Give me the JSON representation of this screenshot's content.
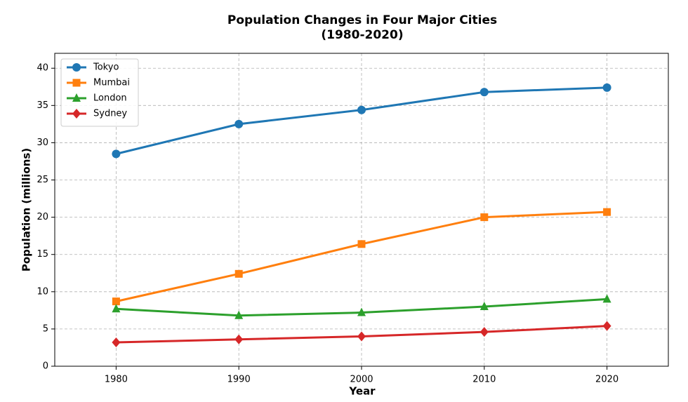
{
  "chart_data": {
    "type": "line",
    "title": "Population Changes in Four Major Cities",
    "subtitle": "(1980-2020)",
    "x_label": "Year",
    "y_label": "Population (millions)",
    "x": [
      1980,
      1990,
      2000,
      2010,
      2020
    ],
    "series": [
      {
        "name": "Tokyo",
        "color": "#1f77b4",
        "marker": "circle",
        "values": [
          28.5,
          32.5,
          34.4,
          36.8,
          37.4
        ]
      },
      {
        "name": "Mumbai",
        "color": "#ff7f0e",
        "marker": "square",
        "values": [
          8.7,
          12.4,
          16.4,
          20.0,
          20.7
        ]
      },
      {
        "name": "London",
        "color": "#2ca02c",
        "marker": "triangle",
        "values": [
          7.7,
          6.8,
          7.2,
          8.0,
          9.0
        ]
      },
      {
        "name": "Sydney",
        "color": "#d62728",
        "marker": "diamond",
        "values": [
          3.2,
          3.6,
          4.0,
          4.6,
          5.4
        ]
      }
    ],
    "xlim": [
      1975,
      2025
    ],
    "xticks": [
      1980,
      1990,
      2000,
      2010,
      2020
    ],
    "ylim": [
      0,
      42
    ],
    "yticks": [
      0,
      5,
      10,
      15,
      20,
      25,
      30,
      35,
      40
    ],
    "grid": true,
    "legend": "upper-left"
  }
}
